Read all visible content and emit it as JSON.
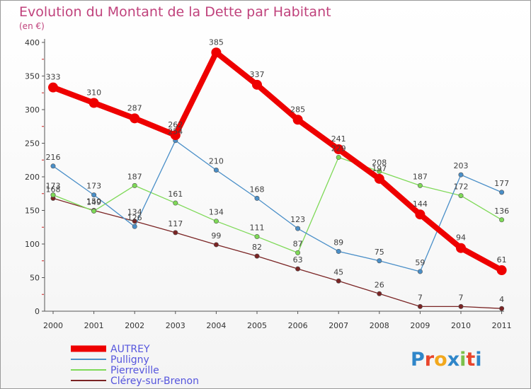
{
  "chart_data": {
    "type": "line",
    "title": "Evolution du Montant de la Dette par Habitant",
    "subtitle": "(en €)",
    "x": [
      "2000",
      "2001",
      "2002",
      "2003",
      "2004",
      "2005",
      "2006",
      "2007",
      "2008",
      "2009",
      "2010",
      "2011"
    ],
    "ylim": [
      0,
      400
    ],
    "yticks": [
      0,
      50,
      100,
      150,
      200,
      250,
      300,
      350,
      400
    ],
    "grid": false,
    "legend_position": "bottom-left",
    "series": [
      {
        "name": "AUTREY",
        "color": "#ee0000",
        "values": [
          333,
          310,
          287,
          262,
          385,
          337,
          285,
          241,
          197,
          144,
          94,
          61
        ]
      },
      {
        "name": "Pulligny",
        "color": "#4a8fc8",
        "values": [
          216,
          173,
          126,
          254,
          210,
          168,
          123,
          89,
          75,
          59,
          203,
          177
        ]
      },
      {
        "name": "Pierreville",
        "color": "#7ed957",
        "values": [
          173,
          149,
          187,
          161,
          134,
          111,
          87,
          229,
          208,
          187,
          172,
          136
        ]
      },
      {
        "name": "Clérey-sur-Brenon",
        "color": "#7a2424",
        "values": [
          168,
          150,
          134,
          117,
          99,
          82,
          63,
          45,
          26,
          7,
          7,
          4
        ]
      }
    ]
  },
  "logo": {
    "text": "Proxiti",
    "letter_colors": [
      "#2f86c9",
      "#e8452c",
      "#f2a81d",
      "#2f86c9",
      "#7cc04b",
      "#e8452c",
      "#2f86c9"
    ]
  }
}
